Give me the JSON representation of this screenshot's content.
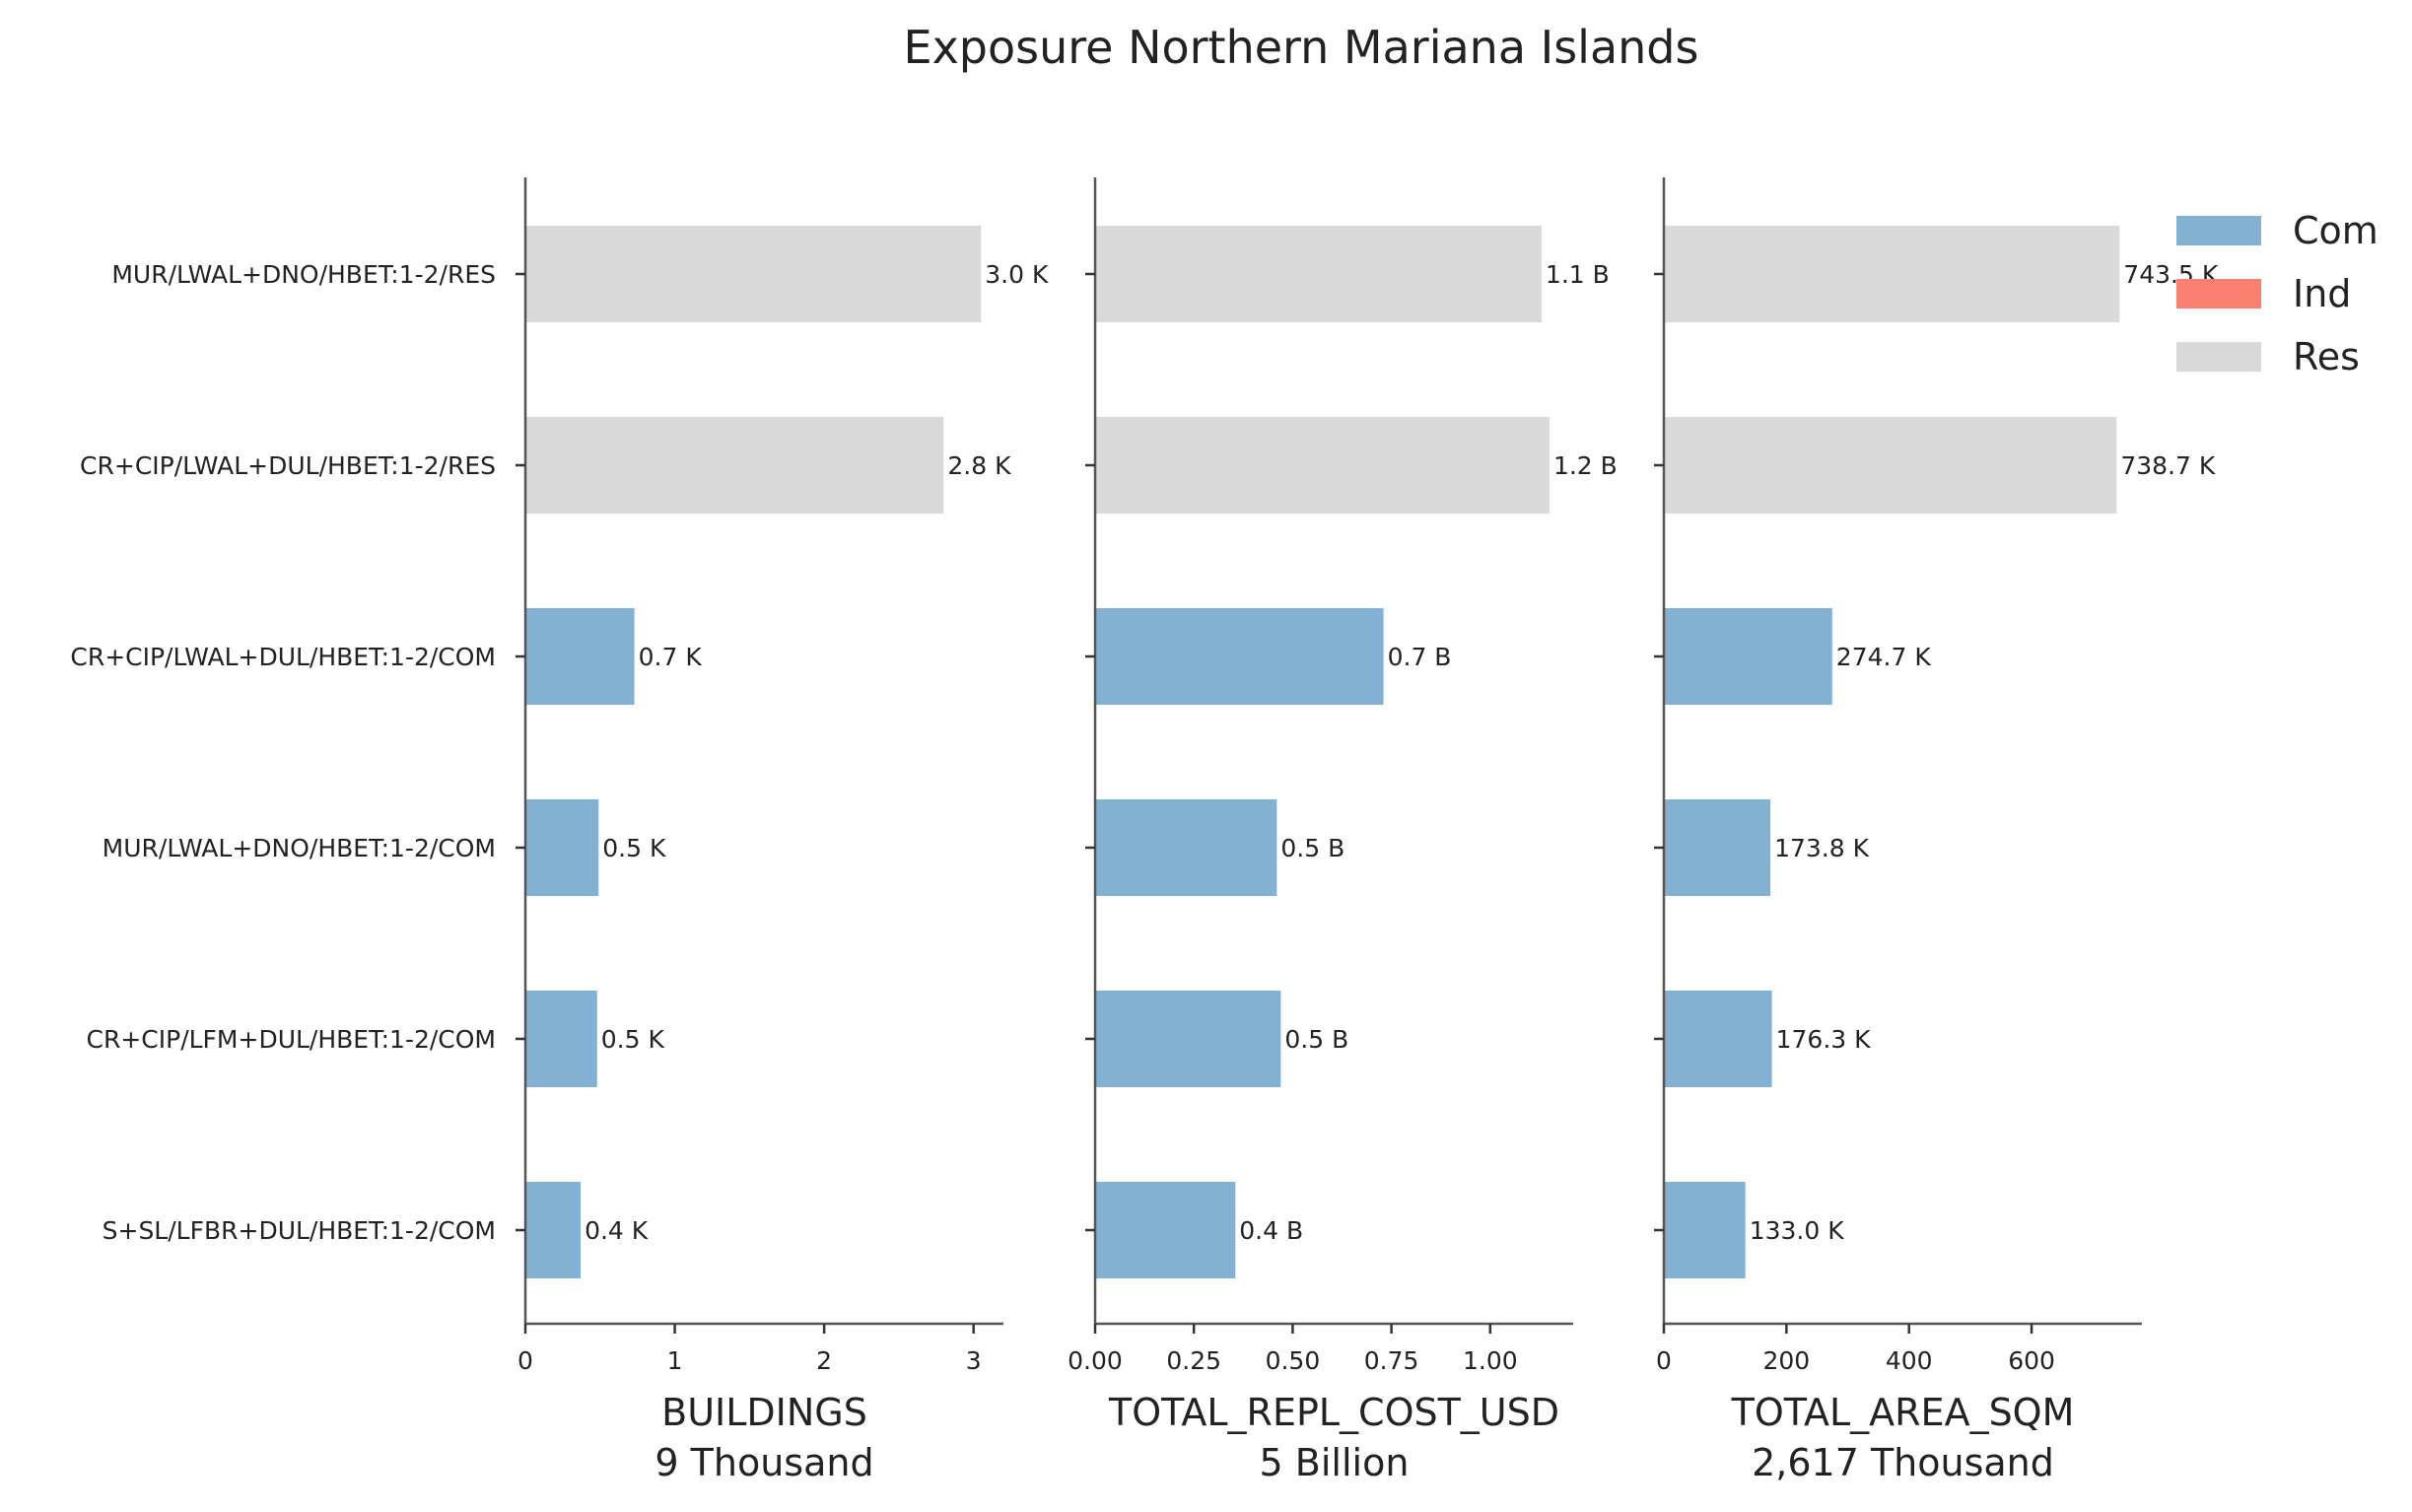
{
  "title": "Exposure Northern Mariana Islands",
  "colors": {
    "Com": "#82b1d4",
    "Ind": "#fa8072",
    "Res": "#d9d9d9"
  },
  "chart_data": {
    "type": "bar",
    "orientation": "horizontal",
    "categories": [
      "MUR/LWAL+DNO/HBET:1-2/RES",
      "CR+CIP/LWAL+DUL/HBET:1-2/RES",
      "CR+CIP/LWAL+DUL/HBET:1-2/COM",
      "MUR/LWAL+DNO/HBET:1-2/COM",
      "CR+CIP/LFM+DUL/HBET:1-2/COM",
      "S+SL/LFBR+DUL/HBET:1-2/COM"
    ],
    "occupancy": [
      "Res",
      "Res",
      "Com",
      "Com",
      "Com",
      "Com"
    ],
    "legend": {
      "position": "top-right",
      "entries": [
        "Com",
        "Ind",
        "Res"
      ]
    },
    "panels": [
      {
        "xlabel": "BUILDINGS",
        "total": "9 Thousand",
        "values": [
          3.05,
          2.8,
          0.73,
          0.49,
          0.48,
          0.37
        ],
        "labels": [
          "3.0 K",
          "2.8 K",
          "0.7 K",
          "0.5 K",
          "0.5 K",
          "0.4 K"
        ],
        "xlim": [
          0,
          3.2
        ],
        "ticks": [
          0,
          1,
          2,
          3
        ],
        "tick_labels": [
          "0",
          "1",
          "2",
          "3"
        ]
      },
      {
        "xlabel": "TOTAL_REPL_COST_USD",
        "total": "5 Billion",
        "values": [
          1.13,
          1.15,
          0.73,
          0.46,
          0.47,
          0.355
        ],
        "labels": [
          "1.1 B",
          "1.2 B",
          "0.7 B",
          "0.5 B",
          "0.5 B",
          "0.4 B"
        ],
        "xlim": [
          0,
          1.21
        ],
        "ticks": [
          0,
          0.25,
          0.5,
          0.75,
          1.0
        ],
        "tick_labels": [
          "0.00",
          "0.25",
          "0.50",
          "0.75",
          "1.00"
        ]
      },
      {
        "xlabel": "TOTAL_AREA_SQM",
        "total": "2,617 Thousand",
        "values": [
          743.5,
          738.7,
          274.7,
          173.8,
          176.3,
          133.0
        ],
        "labels": [
          "743.5 K",
          "738.7 K",
          "274.7 K",
          "173.8 K",
          "176.3 K",
          "133.0 K"
        ],
        "xlim": [
          0,
          780
        ],
        "ticks": [
          0,
          200,
          400,
          600
        ],
        "tick_labels": [
          "0",
          "200",
          "400",
          "600"
        ]
      }
    ]
  }
}
